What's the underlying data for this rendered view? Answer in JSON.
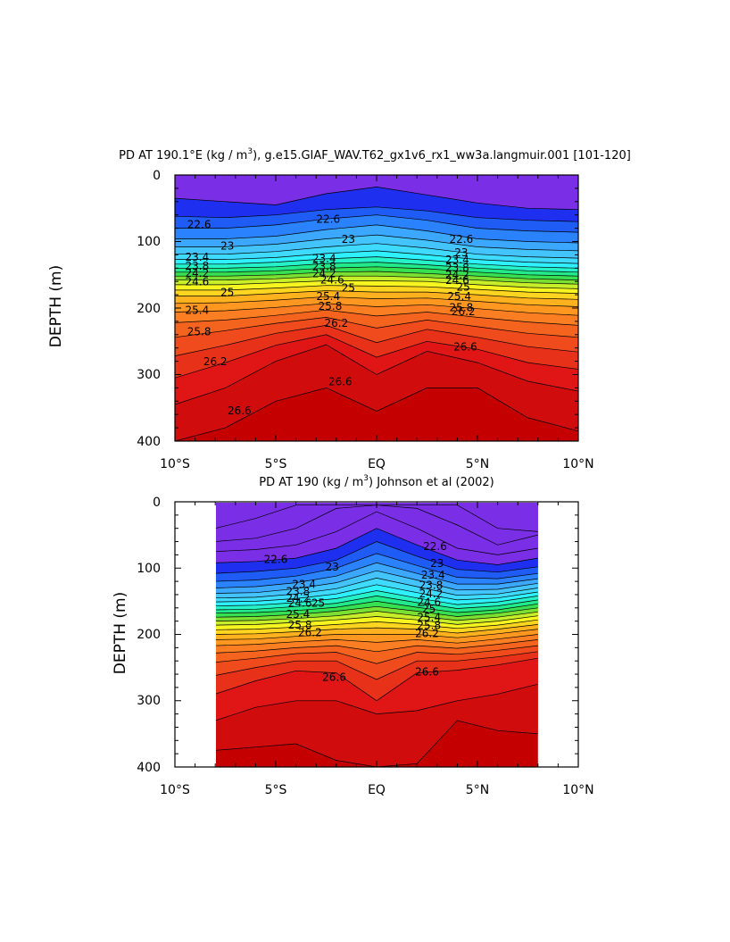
{
  "chart_data": [
    {
      "type": "heatmap",
      "title": "PD AT 190.1°E (kg / m³), g.e15.GIAF_WAV.T62_gx1v6_rx1_ww3a.langmuir.001 [101-120]",
      "title_parts": {
        "main": "PD AT 190.1°E (kg / m",
        "sup": "3",
        "rest": "), g.e15.GIAF_WAV.T62_gx1v6_rx1_ww3a.langmuir.001 ",
        "bracket": "[101-120]"
      },
      "xlabel": "",
      "ylabel": "DEPTH (m)",
      "xlim": [
        -10,
        10
      ],
      "ylim": [
        0,
        400
      ],
      "x_ticks": [
        {
          "value": -10,
          "label": "10°S"
        },
        {
          "value": -5,
          "label": "5°S"
        },
        {
          "value": 0,
          "label": "EQ"
        },
        {
          "value": 5,
          "label": "5°N"
        },
        {
          "value": 10,
          "label": "10°N"
        }
      ],
      "y_ticks": [
        {
          "value": 0,
          "label": "0"
        },
        {
          "value": 100,
          "label": "100"
        },
        {
          "value": 200,
          "label": "200"
        },
        {
          "value": 300,
          "label": "300"
        },
        {
          "value": 400,
          "label": "400"
        }
      ],
      "data_xlim": [
        -10,
        10
      ],
      "contour_interval": 0.2,
      "x": [
        -10,
        -7.5,
        -5,
        -2.5,
        0,
        2.5,
        5,
        7.5,
        10
      ],
      "contours": [
        {
          "level": 22.4,
          "depths": [
            35,
            40,
            45,
            28,
            18,
            30,
            42,
            50,
            52
          ]
        },
        {
          "level": 22.6,
          "depths": [
            62,
            64,
            60,
            52,
            48,
            54,
            64,
            68,
            70
          ]
        },
        {
          "level": 22.8,
          "depths": [
            80,
            80,
            75,
            66,
            60,
            68,
            80,
            84,
            86
          ]
        },
        {
          "level": 23.0,
          "depths": [
            96,
            96,
            92,
            82,
            75,
            84,
            96,
            100,
            102
          ]
        },
        {
          "level": 23.2,
          "depths": [
            108,
            108,
            104,
            96,
            90,
            98,
            108,
            112,
            114
          ]
        },
        {
          "level": 23.4,
          "depths": [
            119,
            119,
            115,
            108,
            103,
            110,
            119,
            123,
            125
          ]
        },
        {
          "level": 23.6,
          "depths": [
            127,
            127,
            124,
            118,
            114,
            120,
            127,
            131,
            133
          ]
        },
        {
          "level": 23.8,
          "depths": [
            134,
            134,
            131,
            126,
            123,
            128,
            134,
            138,
            140
          ]
        },
        {
          "level": 24.0,
          "depths": [
            140,
            140,
            138,
            133,
            131,
            135,
            140,
            144,
            146
          ]
        },
        {
          "level": 24.2,
          "depths": [
            146,
            146,
            144,
            140,
            138,
            141,
            146,
            150,
            152
          ]
        },
        {
          "level": 24.4,
          "depths": [
            152,
            152,
            150,
            146,
            145,
            148,
            152,
            156,
            158
          ]
        },
        {
          "level": 24.6,
          "depths": [
            158,
            158,
            156,
            152,
            152,
            154,
            158,
            162,
            164
          ]
        },
        {
          "level": 24.8,
          "depths": [
            165,
            165,
            162,
            159,
            159,
            160,
            165,
            169,
            171
          ]
        },
        {
          "level": 25.0,
          "depths": [
            173,
            173,
            170,
            166,
            167,
            168,
            172,
            176,
            178
          ]
        },
        {
          "level": 25.2,
          "depths": [
            182,
            182,
            178,
            174,
            176,
            176,
            180,
            185,
            187
          ]
        },
        {
          "level": 25.4,
          "depths": [
            193,
            192,
            188,
            183,
            186,
            185,
            190,
            195,
            198
          ]
        },
        {
          "level": 25.6,
          "depths": [
            206,
            204,
            199,
            193,
            198,
            195,
            201,
            207,
            211
          ]
        },
        {
          "level": 25.8,
          "depths": [
            222,
            218,
            211,
            203,
            212,
            206,
            214,
            221,
            226
          ]
        },
        {
          "level": 26.0,
          "depths": [
            244,
            234,
            223,
            214,
            230,
            218,
            228,
            238,
            244
          ]
        },
        {
          "level": 26.2,
          "depths": [
            272,
            256,
            238,
            226,
            252,
            232,
            244,
            258,
            266
          ]
        },
        {
          "level": 26.4,
          "depths": [
            305,
            282,
            256,
            240,
            274,
            250,
            262,
            282,
            292
          ]
        },
        {
          "level": 26.6,
          "depths": [
            345,
            320,
            280,
            255,
            300,
            265,
            282,
            310,
            325
          ]
        },
        {
          "level": 26.8,
          "depths": [
            400,
            380,
            340,
            320,
            355,
            320,
            320,
            365,
            385
          ]
        }
      ],
      "contour_labels": [
        {
          "text": "22.6",
          "x": -8.8,
          "depth": 80
        },
        {
          "text": "22.6",
          "x": -2.4,
          "depth": 72
        },
        {
          "text": "22.6",
          "x": 4.2,
          "depth": 102
        },
        {
          "text": "23",
          "x": -7.4,
          "depth": 112
        },
        {
          "text": "23",
          "x": -1.4,
          "depth": 102
        },
        {
          "text": "23",
          "x": 4.2,
          "depth": 122
        },
        {
          "text": "23.4",
          "x": -8.9,
          "depth": 129
        },
        {
          "text": "23.4",
          "x": -2.6,
          "depth": 131
        },
        {
          "text": "23.4",
          "x": 4.0,
          "depth": 133
        },
        {
          "text": "23.8",
          "x": -8.9,
          "depth": 142
        },
        {
          "text": "23.8",
          "x": -2.6,
          "depth": 143
        },
        {
          "text": "23.8",
          "x": 4.0,
          "depth": 145
        },
        {
          "text": "24.2",
          "x": -8.9,
          "depth": 153
        },
        {
          "text": "24.2",
          "x": -2.6,
          "depth": 154
        },
        {
          "text": "24.2",
          "x": 4.0,
          "depth": 156
        },
        {
          "text": "24.6",
          "x": -8.9,
          "depth": 166
        },
        {
          "text": "24.6",
          "x": -2.2,
          "depth": 163
        },
        {
          "text": "24.6",
          "x": 4.0,
          "depth": 164
        },
        {
          "text": "25",
          "x": -7.4,
          "depth": 182
        },
        {
          "text": "25",
          "x": -1.4,
          "depth": 175
        },
        {
          "text": "25",
          "x": 4.3,
          "depth": 174
        },
        {
          "text": "25.4",
          "x": -8.9,
          "depth": 209
        },
        {
          "text": "25.4",
          "x": -2.4,
          "depth": 188
        },
        {
          "text": "25.4",
          "x": 4.1,
          "depth": 188
        },
        {
          "text": "25.8",
          "x": -8.8,
          "depth": 241
        },
        {
          "text": "25.8",
          "x": -2.3,
          "depth": 203
        },
        {
          "text": "25.8",
          "x": 4.2,
          "depth": 205
        },
        {
          "text": "26.2",
          "x": -8.0,
          "depth": 286
        },
        {
          "text": "26.2",
          "x": -2.0,
          "depth": 228
        },
        {
          "text": "26.2",
          "x": 4.3,
          "depth": 211
        },
        {
          "text": "26.6",
          "x": -6.8,
          "depth": 360
        },
        {
          "text": "26.6",
          "x": -1.8,
          "depth": 316
        },
        {
          "text": "26.6",
          "x": 4.4,
          "depth": 264
        }
      ]
    },
    {
      "type": "heatmap",
      "title": "PD AT 190 (kg / m³) Johnson et al (2002)",
      "title_parts": {
        "main": "PD AT 190 (kg / m",
        "sup": "3",
        "rest": ") Johnson et al (2002)",
        "bracket": ""
      },
      "xlabel": "",
      "ylabel": "DEPTH (m)",
      "xlim": [
        -10,
        10
      ],
      "ylim": [
        0,
        400
      ],
      "x_ticks": [
        {
          "value": -10,
          "label": "10°S"
        },
        {
          "value": -5,
          "label": "5°S"
        },
        {
          "value": 0,
          "label": "EQ"
        },
        {
          "value": 5,
          "label": "5°N"
        },
        {
          "value": 10,
          "label": "10°N"
        }
      ],
      "y_ticks": [
        {
          "value": 0,
          "label": "0"
        },
        {
          "value": 100,
          "label": "100"
        },
        {
          "value": 200,
          "label": "200"
        },
        {
          "value": 300,
          "label": "300"
        },
        {
          "value": 400,
          "label": "400"
        }
      ],
      "data_xlim": [
        -8,
        8
      ],
      "contour_interval": 0.2,
      "x": [
        -8,
        -6,
        -4,
        -2,
        0,
        2,
        4,
        6,
        8
      ],
      "contours": [
        {
          "level": 22.0,
          "depths": [
            40,
            25,
            5,
            5,
            5,
            5,
            5,
            40,
            45
          ]
        },
        {
          "level": 22.2,
          "depths": [
            60,
            55,
            40,
            10,
            5,
            10,
            35,
            65,
            50
          ]
        },
        {
          "level": 22.4,
          "depths": [
            75,
            72,
            65,
            45,
            15,
            40,
            70,
            80,
            70
          ]
        },
        {
          "level": 22.6,
          "depths": [
            92,
            90,
            85,
            70,
            40,
            65,
            88,
            95,
            85
          ]
        },
        {
          "level": 22.8,
          "depths": [
            108,
            105,
            100,
            88,
            60,
            82,
            102,
            106,
            98
          ]
        },
        {
          "level": 23.0,
          "depths": [
            120,
            118,
            112,
            100,
            78,
            96,
            114,
            116,
            108
          ]
        },
        {
          "level": 23.2,
          "depths": [
            130,
            128,
            122,
            112,
            92,
            108,
            124,
            124,
            116
          ]
        },
        {
          "level": 23.4,
          "depths": [
            138,
            137,
            131,
            122,
            104,
            118,
            133,
            132,
            123
          ]
        },
        {
          "level": 23.6,
          "depths": [
            145,
            144,
            139,
            131,
            115,
            128,
            141,
            139,
            130
          ]
        },
        {
          "level": 23.8,
          "depths": [
            151,
            150,
            146,
            139,
            125,
            137,
            148,
            145,
            136
          ]
        },
        {
          "level": 24.0,
          "depths": [
            157,
            156,
            152,
            146,
            134,
            145,
            155,
            151,
            142
          ]
        },
        {
          "level": 24.2,
          "depths": [
            163,
            162,
            158,
            153,
            142,
            152,
            161,
            157,
            148
          ]
        },
        {
          "level": 24.4,
          "depths": [
            168,
            167,
            164,
            159,
            150,
            159,
            167,
            163,
            154
          ]
        },
        {
          "level": 24.6,
          "depths": [
            174,
            173,
            170,
            165,
            158,
            165,
            173,
            168,
            160
          ]
        },
        {
          "level": 24.8,
          "depths": [
            180,
            179,
            176,
            172,
            165,
            172,
            179,
            174,
            166
          ]
        },
        {
          "level": 25.0,
          "depths": [
            186,
            185,
            182,
            178,
            173,
            178,
            185,
            180,
            172
          ]
        },
        {
          "level": 25.2,
          "depths": [
            193,
            192,
            189,
            185,
            181,
            185,
            191,
            186,
            178
          ]
        },
        {
          "level": 25.4,
          "depths": [
            200,
            199,
            196,
            192,
            190,
            192,
            198,
            192,
            185
          ]
        },
        {
          "level": 25.6,
          "depths": [
            208,
            207,
            203,
            200,
            200,
            200,
            205,
            199,
            192
          ]
        },
        {
          "level": 25.8,
          "depths": [
            217,
            215,
            211,
            208,
            212,
            208,
            213,
            207,
            200
          ]
        },
        {
          "level": 26.0,
          "depths": [
            228,
            225,
            220,
            217,
            226,
            217,
            221,
            215,
            208
          ]
        },
        {
          "level": 26.2,
          "depths": [
            242,
            236,
            229,
            227,
            244,
            227,
            230,
            224,
            217
          ]
        },
        {
          "level": 26.4,
          "depths": [
            262,
            250,
            240,
            240,
            268,
            240,
            240,
            234,
            226
          ]
        },
        {
          "level": 26.6,
          "depths": [
            290,
            270,
            255,
            258,
            300,
            258,
            254,
            246,
            236
          ]
        },
        {
          "level": 26.8,
          "depths": [
            330,
            310,
            300,
            300,
            320,
            315,
            300,
            290,
            275
          ]
        },
        {
          "level": 27.0,
          "depths": [
            375,
            370,
            365,
            390,
            400,
            395,
            330,
            345,
            350
          ]
        }
      ],
      "contour_labels": [
        {
          "text": "22.6",
          "x": -5.0,
          "depth": 92
        },
        {
          "text": "22.6",
          "x": 2.9,
          "depth": 73
        },
        {
          "text": "23",
          "x": -2.2,
          "depth": 104
        },
        {
          "text": "23",
          "x": 3.0,
          "depth": 98
        },
        {
          "text": "23.4",
          "x": -3.6,
          "depth": 130
        },
        {
          "text": "23.4",
          "x": 2.8,
          "depth": 116
        },
        {
          "text": "23.8",
          "x": -3.9,
          "depth": 141
        },
        {
          "text": "23.8",
          "x": 2.7,
          "depth": 131
        },
        {
          "text": "24.2",
          "x": -3.9,
          "depth": 151
        },
        {
          "text": "24.2",
          "x": 2.7,
          "depth": 144
        },
        {
          "text": "24.6",
          "x": -3.8,
          "depth": 158
        },
        {
          "text": "24.6",
          "x": 2.6,
          "depth": 157
        },
        {
          "text": "25",
          "x": -2.9,
          "depth": 158
        },
        {
          "text": "25",
          "x": 2.6,
          "depth": 167
        },
        {
          "text": "25.4",
          "x": -3.9,
          "depth": 175
        },
        {
          "text": "25.4",
          "x": 2.6,
          "depth": 180
        },
        {
          "text": "25.8",
          "x": -3.8,
          "depth": 191
        },
        {
          "text": "25.8",
          "x": 2.6,
          "depth": 192
        },
        {
          "text": "26.2",
          "x": -3.3,
          "depth": 203
        },
        {
          "text": "26.2",
          "x": 2.5,
          "depth": 204
        },
        {
          "text": "26.6",
          "x": -2.1,
          "depth": 270
        },
        {
          "text": "26.6",
          "x": 2.5,
          "depth": 262
        }
      ]
    }
  ],
  "colors": {
    "bands": [
      "#7a2fe6",
      "#1f2ff0",
      "#1f5cf5",
      "#2a82ff",
      "#3ca7ff",
      "#43c4ff",
      "#3fdaff",
      "#2ef0ff",
      "#25f2c8",
      "#22ea8a",
      "#36e050",
      "#7be032",
      "#c8ee2a",
      "#f6f51f",
      "#ffd51f",
      "#ffb11e",
      "#ff9721",
      "#fb7f22",
      "#f5641f",
      "#ef4b1c",
      "#e83119",
      "#e01616",
      "#d10c0c",
      "#c40000"
    ],
    "top_band": "#b800ff",
    "contour_line": "#000000",
    "frame": "#000000",
    "background": "#ffffff"
  }
}
